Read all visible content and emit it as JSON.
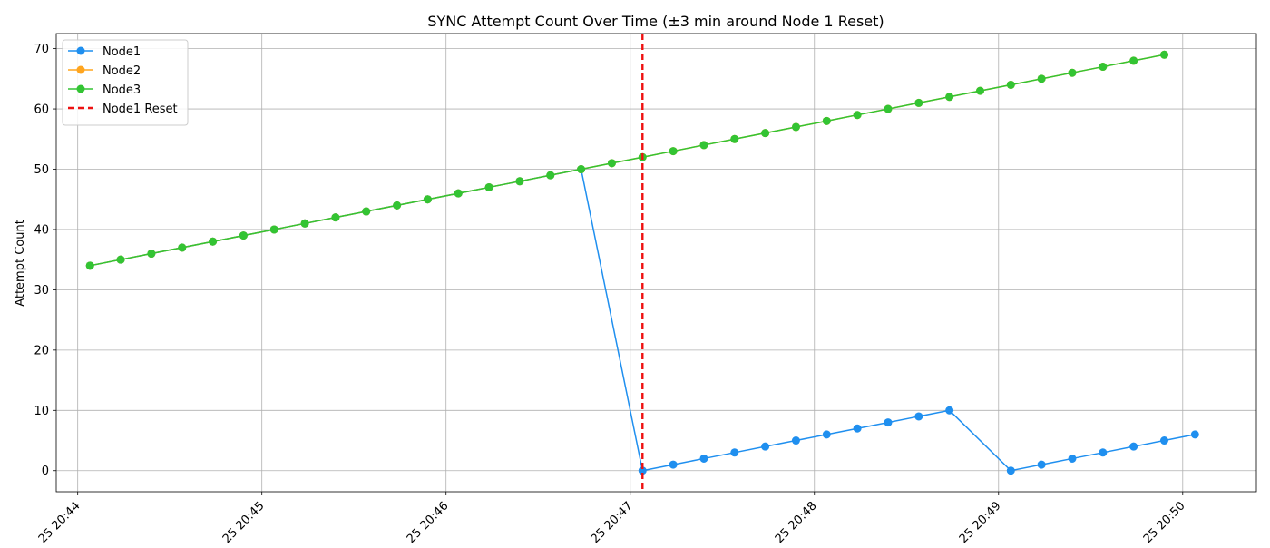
{
  "chart_data": {
    "type": "line",
    "title": "SYNC Attempt Count Over Time (±3 min around Node 1 Reset)",
    "xlabel": "",
    "ylabel": "Attempt Count",
    "x_ticks": [
      "25 20:44",
      "25 20:45",
      "25 20:46",
      "25 20:47",
      "25 20:48",
      "25 20:49",
      "25 20:50"
    ],
    "y_ticks": [
      "0",
      "10",
      "20",
      "30",
      "40",
      "50",
      "60",
      "70"
    ],
    "xlim": [
      "20:43:53",
      "20:50:24"
    ],
    "ylim": [
      -3.5,
      72.5
    ],
    "grid": true,
    "legend_position": "top-left",
    "series": [
      {
        "name": "Node1",
        "color": "#1f8fef",
        "marker": "circle",
        "points": [
          [
            "20:44:04",
            34
          ],
          [
            "20:44:14",
            35
          ],
          [
            "20:44:24",
            36
          ],
          [
            "20:44:34",
            37
          ],
          [
            "20:44:44",
            38
          ],
          [
            "20:44:54",
            39
          ],
          [
            "20:45:04",
            40
          ],
          [
            "20:45:14",
            41
          ],
          [
            "20:45:24",
            42
          ],
          [
            "20:45:34",
            43
          ],
          [
            "20:45:44",
            44
          ],
          [
            "20:45:54",
            45
          ],
          [
            "20:46:04",
            46
          ],
          [
            "20:46:14",
            47
          ],
          [
            "20:46:24",
            48
          ],
          [
            "20:46:34",
            49
          ],
          [
            "20:46:44",
            50
          ],
          [
            "20:47:04",
            0
          ],
          [
            "20:47:14",
            1
          ],
          [
            "20:47:24",
            2
          ],
          [
            "20:47:34",
            3
          ],
          [
            "20:47:44",
            4
          ],
          [
            "20:47:54",
            5
          ],
          [
            "20:48:04",
            6
          ],
          [
            "20:48:14",
            7
          ],
          [
            "20:48:24",
            8
          ],
          [
            "20:48:34",
            9
          ],
          [
            "20:48:44",
            10
          ],
          [
            "20:49:04",
            0
          ],
          [
            "20:49:14",
            1
          ],
          [
            "20:49:24",
            2
          ],
          [
            "20:49:34",
            3
          ],
          [
            "20:49:44",
            4
          ],
          [
            "20:49:54",
            5
          ],
          [
            "20:50:04",
            6
          ]
        ]
      },
      {
        "name": "Node2",
        "color": "#ffa51f",
        "marker": "circle",
        "points": [
          [
            "20:44:04",
            34
          ],
          [
            "20:44:14",
            35
          ],
          [
            "20:44:24",
            36
          ],
          [
            "20:44:34",
            37
          ],
          [
            "20:44:44",
            38
          ],
          [
            "20:44:54",
            39
          ],
          [
            "20:45:04",
            40
          ],
          [
            "20:45:14",
            41
          ],
          [
            "20:45:24",
            42
          ],
          [
            "20:45:34",
            43
          ],
          [
            "20:45:44",
            44
          ],
          [
            "20:45:54",
            45
          ],
          [
            "20:46:04",
            46
          ],
          [
            "20:46:14",
            47
          ],
          [
            "20:46:24",
            48
          ],
          [
            "20:46:34",
            49
          ],
          [
            "20:46:44",
            50
          ],
          [
            "20:46:54",
            51
          ],
          [
            "20:47:04",
            52
          ],
          [
            "20:47:14",
            53
          ],
          [
            "20:47:24",
            54
          ],
          [
            "20:47:34",
            55
          ],
          [
            "20:47:44",
            56
          ],
          [
            "20:47:54",
            57
          ],
          [
            "20:48:04",
            58
          ],
          [
            "20:48:14",
            59
          ],
          [
            "20:48:24",
            60
          ],
          [
            "20:48:34",
            61
          ],
          [
            "20:48:44",
            62
          ],
          [
            "20:48:54",
            63
          ],
          [
            "20:49:04",
            64
          ],
          [
            "20:49:14",
            65
          ],
          [
            "20:49:24",
            66
          ],
          [
            "20:49:34",
            67
          ],
          [
            "20:49:44",
            68
          ],
          [
            "20:49:54",
            69
          ]
        ]
      },
      {
        "name": "Node3",
        "color": "#33c433",
        "marker": "circle",
        "points": [
          [
            "20:44:04",
            34
          ],
          [
            "20:44:14",
            35
          ],
          [
            "20:44:24",
            36
          ],
          [
            "20:44:34",
            37
          ],
          [
            "20:44:44",
            38
          ],
          [
            "20:44:54",
            39
          ],
          [
            "20:45:04",
            40
          ],
          [
            "20:45:14",
            41
          ],
          [
            "20:45:24",
            42
          ],
          [
            "20:45:34",
            43
          ],
          [
            "20:45:44",
            44
          ],
          [
            "20:45:54",
            45
          ],
          [
            "20:46:04",
            46
          ],
          [
            "20:46:14",
            47
          ],
          [
            "20:46:24",
            48
          ],
          [
            "20:46:34",
            49
          ],
          [
            "20:46:44",
            50
          ],
          [
            "20:46:54",
            51
          ],
          [
            "20:47:04",
            52
          ],
          [
            "20:47:14",
            53
          ],
          [
            "20:47:24",
            54
          ],
          [
            "20:47:34",
            55
          ],
          [
            "20:47:44",
            56
          ],
          [
            "20:47:54",
            57
          ],
          [
            "20:48:04",
            58
          ],
          [
            "20:48:14",
            59
          ],
          [
            "20:48:24",
            60
          ],
          [
            "20:48:34",
            61
          ],
          [
            "20:48:44",
            62
          ],
          [
            "20:48:54",
            63
          ],
          [
            "20:49:04",
            64
          ],
          [
            "20:49:14",
            65
          ],
          [
            "20:49:24",
            66
          ],
          [
            "20:49:34",
            67
          ],
          [
            "20:49:44",
            68
          ],
          [
            "20:49:54",
            69
          ]
        ]
      }
    ],
    "reference_lines": [
      {
        "name": "Node1 Reset",
        "orientation": "vertical",
        "x": "20:47:04",
        "color": "#ee1111",
        "style": "dashed"
      }
    ]
  }
}
